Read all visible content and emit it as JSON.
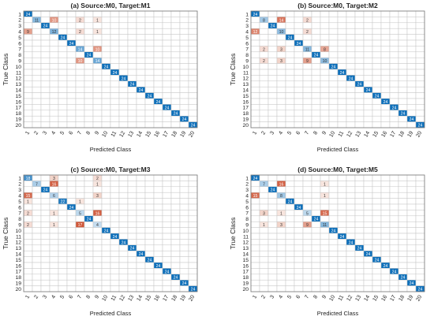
{
  "chart_data": [
    {
      "type": "heatmap",
      "title": "(a) Source:M0, Target:M1",
      "xlabel": "Predicted Class",
      "ylabel": "True Class",
      "classes": [
        "1",
        "2",
        "3",
        "4",
        "5",
        "6",
        "7",
        "8",
        "9",
        "10",
        "11",
        "12",
        "13",
        "14",
        "15",
        "16",
        "17",
        "18",
        "19",
        "20"
      ],
      "diagonal": [
        24,
        11,
        24,
        12,
        24,
        24,
        14,
        24,
        14,
        24,
        24,
        24,
        24,
        24,
        24,
        24,
        24,
        24,
        24,
        24
      ],
      "off_diagonal": [
        {
          "true": "2",
          "pred": "4",
          "value": 10
        },
        {
          "true": "2",
          "pred": "7",
          "value": 2
        },
        {
          "true": "2",
          "pred": "9",
          "value": 1
        },
        {
          "true": "4",
          "pred": "1",
          "value": 9
        },
        {
          "true": "4",
          "pred": "7",
          "value": 2
        },
        {
          "true": "4",
          "pred": "9",
          "value": 1
        },
        {
          "true": "7",
          "pred": "9",
          "value": 10
        },
        {
          "true": "9",
          "pred": "7",
          "value": 10
        }
      ]
    },
    {
      "type": "heatmap",
      "title": "(b) Source:M0, Target:M2",
      "xlabel": "Predicted Class",
      "ylabel": "True Class",
      "classes": [
        "1",
        "2",
        "3",
        "4",
        "5",
        "6",
        "7",
        "8",
        "9",
        "10",
        "11",
        "12",
        "13",
        "14",
        "15",
        "16",
        "17",
        "18",
        "19",
        "20"
      ],
      "diagonal": [
        24,
        8,
        24,
        10,
        24,
        24,
        11,
        24,
        10,
        24,
        24,
        24,
        24,
        24,
        24,
        24,
        24,
        24,
        24,
        24
      ],
      "off_diagonal": [
        {
          "true": "2",
          "pred": "4",
          "value": 14
        },
        {
          "true": "2",
          "pred": "7",
          "value": 2
        },
        {
          "true": "4",
          "pred": "1",
          "value": 12
        },
        {
          "true": "4",
          "pred": "7",
          "value": 2
        },
        {
          "true": "7",
          "pred": "2",
          "value": 2
        },
        {
          "true": "7",
          "pred": "4",
          "value": 3
        },
        {
          "true": "7",
          "pred": "9",
          "value": 8
        },
        {
          "true": "9",
          "pred": "2",
          "value": 2
        },
        {
          "true": "9",
          "pred": "4",
          "value": 3
        },
        {
          "true": "9",
          "pred": "7",
          "value": 9
        }
      ]
    },
    {
      "type": "heatmap",
      "title": "(c) Source:M0, Target:M3",
      "xlabel": "Predicted Class",
      "ylabel": "True Class",
      "classes": [
        "1",
        "2",
        "3",
        "4",
        "5",
        "6",
        "7",
        "8",
        "9",
        "10",
        "11",
        "12",
        "13",
        "14",
        "15",
        "16",
        "17",
        "18",
        "19",
        "20"
      ],
      "diagonal": [
        18,
        7,
        24,
        6,
        22,
        24,
        5,
        24,
        4,
        24,
        24,
        24,
        24,
        24,
        24,
        24,
        24,
        24,
        24,
        24
      ],
      "off_diagonal": [
        {
          "true": "1",
          "pred": "4",
          "value": 3
        },
        {
          "true": "1",
          "pred": "9",
          "value": 2
        },
        {
          "true": "2",
          "pred": "4",
          "value": 16
        },
        {
          "true": "2",
          "pred": "9",
          "value": 1
        },
        {
          "true": "4",
          "pred": "1",
          "value": 15
        },
        {
          "true": "4",
          "pred": "9",
          "value": 3
        },
        {
          "true": "5",
          "pred": "1",
          "value": 1
        },
        {
          "true": "5",
          "pred": "7",
          "value": 1
        },
        {
          "true": "7",
          "pred": "1",
          "value": 2
        },
        {
          "true": "7",
          "pred": "4",
          "value": 1
        },
        {
          "true": "7",
          "pred": "9",
          "value": 16
        },
        {
          "true": "9",
          "pred": "1",
          "value": 2
        },
        {
          "true": "9",
          "pred": "4",
          "value": 1
        },
        {
          "true": "9",
          "pred": "7",
          "value": 17
        }
      ]
    },
    {
      "type": "heatmap",
      "title": "(d) Source:M0, Target:M5",
      "xlabel": "Predicted Class",
      "ylabel": "True Class",
      "classes": [
        "1",
        "2",
        "3",
        "4",
        "5",
        "6",
        "7",
        "8",
        "9",
        "10",
        "11",
        "12",
        "13",
        "14",
        "15",
        "16",
        "17",
        "18",
        "19",
        "20"
      ],
      "diagonal": [
        24,
        7,
        24,
        8,
        24,
        24,
        5,
        24,
        11,
        24,
        24,
        24,
        24,
        24,
        24,
        24,
        24,
        24,
        24,
        24
      ],
      "off_diagonal": [
        {
          "true": "2",
          "pred": "4",
          "value": 16
        },
        {
          "true": "2",
          "pred": "9",
          "value": 1
        },
        {
          "true": "4",
          "pred": "1",
          "value": 15
        },
        {
          "true": "4",
          "pred": "9",
          "value": 1
        },
        {
          "true": "7",
          "pred": "2",
          "value": 3
        },
        {
          "true": "7",
          "pred": "4",
          "value": 1
        },
        {
          "true": "7",
          "pred": "9",
          "value": 15
        },
        {
          "true": "9",
          "pred": "2",
          "value": 1
        },
        {
          "true": "9",
          "pred": "4",
          "value": 3
        },
        {
          "true": "9",
          "pred": "7",
          "value": 9
        }
      ]
    }
  ],
  "colors": {
    "diag_dark": "#0d6fba",
    "diag_light": "#eaf3fb",
    "off_dark": "#d0583a",
    "off_light": "#fbeee8",
    "grid": "#c6c6c6",
    "frame": "#777777",
    "text": "#222222",
    "cell_text_dark": "#ffffff",
    "cell_text_light": "#333333"
  }
}
